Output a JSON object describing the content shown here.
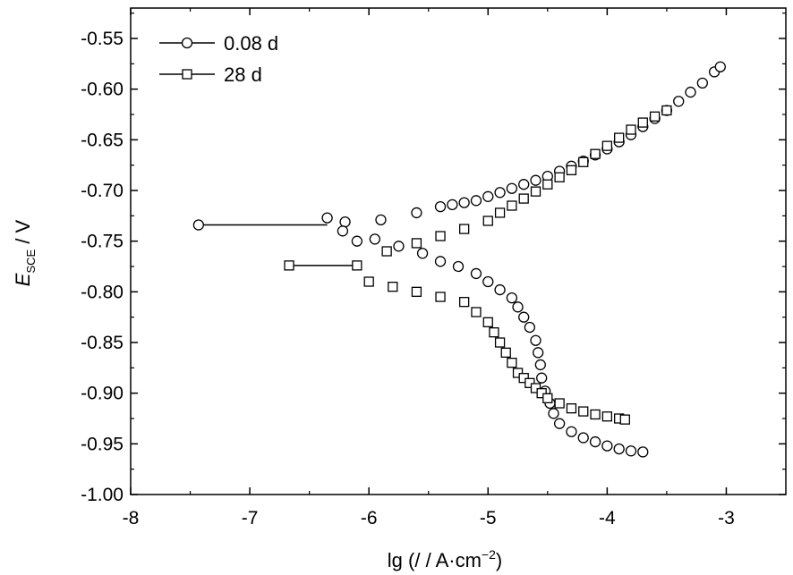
{
  "chart_data": {
    "type": "scatter",
    "xlabel": {
      "prefix": "lg (",
      "unit": "/ / A·cm",
      "sup": "−2",
      "suffix": ")"
    },
    "ylabel": {
      "symbol": "E",
      "sub": "SCE",
      "rest": " / V"
    },
    "xlim": [
      -8,
      -2.5
    ],
    "ylim": [
      -1.0,
      -0.52
    ],
    "xticks": [
      -8,
      -7,
      -6,
      -5,
      -4,
      -3
    ],
    "yticks": [
      -1.0,
      -0.95,
      -0.9,
      -0.85,
      -0.8,
      -0.75,
      -0.7,
      -0.65,
      -0.6,
      -0.55
    ],
    "xtick_labels": [
      "-8",
      "-7",
      "-6",
      "-5",
      "-4",
      "-3"
    ],
    "ytick_labels": [
      "-1.00",
      "-0.95",
      "-0.90",
      "-0.85",
      "-0.80",
      "-0.75",
      "-0.70",
      "-0.65",
      "-0.60",
      "-0.55"
    ],
    "grid": false,
    "legend_position": "top-left",
    "series": [
      {
        "name": "0.08 d",
        "marker": "circle",
        "corrosion_potential": -0.734,
        "x": [
          -7.43,
          -6.35,
          -6.2,
          -5.9,
          -5.6,
          -5.4,
          -5.3,
          -5.2,
          -5.1,
          -5.0,
          -4.9,
          -4.8,
          -4.7,
          -4.6,
          -4.5,
          -4.4,
          -4.3,
          -4.2,
          -4.1,
          -4.0,
          -3.9,
          -3.8,
          -3.7,
          -3.6,
          -3.5,
          -3.4,
          -3.3,
          -3.2,
          -3.1,
          -3.05,
          -6.22,
          -6.1,
          -5.95,
          -5.75,
          -5.55,
          -5.4,
          -5.25,
          -5.1,
          -5.0,
          -4.9,
          -4.8,
          -4.75,
          -4.7,
          -4.65,
          -4.6,
          -4.58,
          -4.56,
          -4.55,
          -4.52,
          -4.48,
          -4.45,
          -4.4,
          -4.3,
          -4.2,
          -4.1,
          -4.0,
          -3.9,
          -3.8,
          -3.7
        ],
        "y": [
          -0.734,
          -0.727,
          -0.731,
          -0.729,
          -0.722,
          -0.716,
          -0.714,
          -0.712,
          -0.71,
          -0.706,
          -0.702,
          -0.698,
          -0.694,
          -0.69,
          -0.686,
          -0.681,
          -0.676,
          -0.671,
          -0.665,
          -0.659,
          -0.652,
          -0.645,
          -0.637,
          -0.629,
          -0.621,
          -0.612,
          -0.603,
          -0.594,
          -0.583,
          -0.578,
          -0.74,
          -0.75,
          -0.748,
          -0.755,
          -0.762,
          -0.77,
          -0.775,
          -0.782,
          -0.79,
          -0.798,
          -0.806,
          -0.815,
          -0.825,
          -0.835,
          -0.848,
          -0.86,
          -0.872,
          -0.885,
          -0.898,
          -0.91,
          -0.92,
          -0.93,
          -0.938,
          -0.944,
          -0.948,
          -0.952,
          -0.955,
          -0.957,
          -0.958
        ]
      },
      {
        "name": "28 d",
        "marker": "square",
        "corrosion_potential": -0.774,
        "x": [
          -6.67,
          -6.1,
          -5.85,
          -5.6,
          -5.4,
          -5.2,
          -5.0,
          -4.9,
          -4.8,
          -4.7,
          -4.6,
          -4.5,
          -4.4,
          -4.3,
          -4.2,
          -4.1,
          -4.0,
          -3.9,
          -3.8,
          -3.7,
          -3.6,
          -3.5,
          -6.0,
          -5.8,
          -5.6,
          -5.4,
          -5.2,
          -5.1,
          -5.0,
          -4.95,
          -4.9,
          -4.85,
          -4.8,
          -4.75,
          -4.7,
          -4.65,
          -4.6,
          -4.55,
          -4.5,
          -4.4,
          -4.3,
          -4.2,
          -4.1,
          -4.0,
          -3.9,
          -3.85
        ],
        "y": [
          -0.774,
          -0.774,
          -0.76,
          -0.752,
          -0.745,
          -0.738,
          -0.73,
          -0.722,
          -0.715,
          -0.708,
          -0.701,
          -0.694,
          -0.687,
          -0.68,
          -0.672,
          -0.664,
          -0.656,
          -0.648,
          -0.64,
          -0.633,
          -0.627,
          -0.621,
          -0.79,
          -0.795,
          -0.8,
          -0.805,
          -0.81,
          -0.82,
          -0.83,
          -0.84,
          -0.85,
          -0.86,
          -0.87,
          -0.88,
          -0.885,
          -0.89,
          -0.895,
          -0.9,
          -0.905,
          -0.91,
          -0.915,
          -0.918,
          -0.921,
          -0.923,
          -0.925,
          -0.926
        ]
      }
    ]
  }
}
